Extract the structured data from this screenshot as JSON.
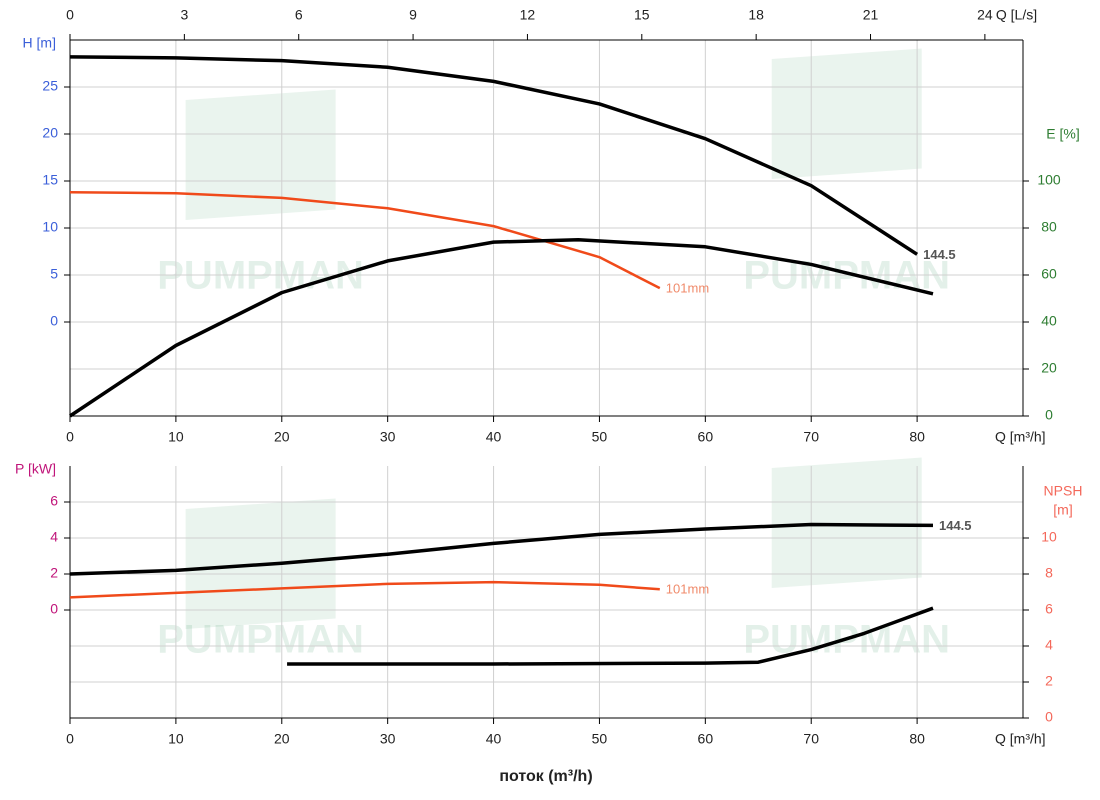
{
  "watermark": "PUMPMAN",
  "x_title": "поток (m³/h)",
  "chart_data": [
    {
      "type": "line",
      "x_label": "Q [m³/h]",
      "xlim": [
        0,
        90
      ],
      "xticks": [
        0,
        10,
        20,
        30,
        40,
        50,
        60,
        70,
        80
      ],
      "x2_label": "Q [L/s]",
      "x2lim": [
        0,
        25
      ],
      "x2ticks": [
        0,
        3,
        6,
        9,
        12,
        15,
        18,
        21,
        24
      ],
      "y_label": "H [m]",
      "y_color": "#3b5fd9",
      "ylim": [
        -10,
        30
      ],
      "yticks": [
        0,
        5,
        10,
        15,
        20,
        25
      ],
      "y2_label": [
        "E [%]"
      ],
      "y2_color": "#2e7d32",
      "y2lim": [
        0,
        160
      ],
      "y2ticks": [
        0,
        20,
        40,
        60,
        80,
        100
      ],
      "grid": true,
      "series": [
        {
          "name": "144.5",
          "color": "#000000",
          "label_color": "#555555",
          "x": [
            0,
            10,
            20,
            30,
            40,
            50,
            60,
            70,
            80
          ],
          "values": [
            28.2,
            28.1,
            27.8,
            27.1,
            25.6,
            23.2,
            19.5,
            14.5,
            7.2
          ]
        },
        {
          "name": "101mm",
          "color": "#f04a1a",
          "label_color": "#f08a6a",
          "x": [
            0,
            10,
            20,
            30,
            40,
            50,
            55.7
          ],
          "values": [
            13.8,
            13.7,
            13.2,
            12.1,
            10.2,
            6.9,
            3.6
          ]
        },
        {
          "color": "#000000",
          "axis": "y2",
          "x": [
            0,
            10,
            20,
            30,
            40,
            48,
            60,
            70,
            81.5
          ],
          "values": [
            0,
            30,
            52.5,
            66,
            74,
            75,
            72,
            64.5,
            52
          ]
        }
      ]
    },
    {
      "type": "line",
      "x_label": "Q [m³/h]",
      "xlim": [
        0,
        90
      ],
      "xticks": [
        0,
        10,
        20,
        30,
        40,
        50,
        60,
        70,
        80
      ],
      "y_label": "P [kW]",
      "y_color": "#c0157a",
      "ylim": [
        -6,
        8
      ],
      "yticks": [
        0,
        2,
        4,
        6
      ],
      "y2_label": [
        "NPSH",
        "[m]"
      ],
      "y2_color": "#f4685a",
      "y2lim": [
        0,
        14
      ],
      "y2ticks": [
        0,
        2,
        4,
        6,
        8,
        10
      ],
      "grid": true,
      "series": [
        {
          "name": "144.5",
          "color": "#000000",
          "label_color": "#555555",
          "x": [
            0,
            10,
            20,
            30,
            40,
            50,
            60,
            70,
            81.5
          ],
          "values": [
            2.0,
            2.2,
            2.6,
            3.1,
            3.7,
            4.2,
            4.5,
            4.75,
            4.7
          ]
        },
        {
          "name": "101mm",
          "color": "#f04a1a",
          "label_color": "#f08a6a",
          "x": [
            0,
            10,
            20,
            30,
            40,
            50,
            55.7
          ],
          "values": [
            0.7,
            0.95,
            1.2,
            1.45,
            1.55,
            1.4,
            1.15
          ]
        },
        {
          "color": "#000000",
          "axis": "y2",
          "x": [
            20.5,
            40,
            60,
            65,
            70,
            75,
            81.5
          ],
          "values": [
            3.0,
            3.0,
            3.05,
            3.1,
            3.8,
            4.7,
            6.1
          ]
        }
      ]
    }
  ]
}
